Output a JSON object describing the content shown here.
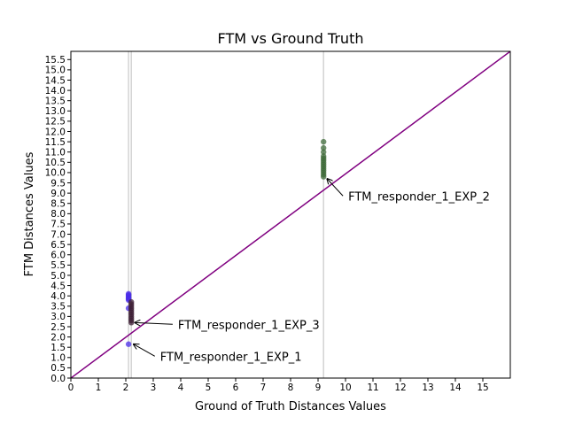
{
  "chart_data": {
    "type": "scatter",
    "title": "FTM vs Ground Truth",
    "xlabel": "Ground of Truth Distances Values",
    "ylabel": "FTM Distances Values",
    "xlim": [
      0,
      16
    ],
    "ylim": [
      0,
      15.9
    ],
    "xticks": [
      0,
      1,
      2,
      3,
      4,
      5,
      6,
      7,
      8,
      9,
      10,
      11,
      12,
      13,
      14,
      15
    ],
    "yticks": [
      0.0,
      0.5,
      1.0,
      1.5,
      2.0,
      2.5,
      3.0,
      3.5,
      4.0,
      4.5,
      5.0,
      5.5,
      6.0,
      6.5,
      7.0,
      7.5,
      8.0,
      8.5,
      9.0,
      9.5,
      10.0,
      10.5,
      11.0,
      11.5,
      12.0,
      12.5,
      13.0,
      13.5,
      14.0,
      14.5,
      15.0,
      15.5
    ],
    "reference_line": {
      "from": [
        0,
        0
      ],
      "to": [
        16,
        15.9
      ],
      "color": "#800080"
    },
    "vertical_lines": [
      {
        "x": 2.1,
        "color": "#d3d3d3"
      },
      {
        "x": 2.2,
        "color": "#d3d3d3"
      },
      {
        "x": 9.2,
        "color": "#d3d3d3"
      }
    ],
    "series": [
      {
        "color": "#4b2ee8",
        "points": [
          [
            2.1,
            1.65
          ],
          [
            2.1,
            3.4
          ],
          [
            2.1,
            3.8
          ],
          [
            2.1,
            3.85
          ],
          [
            2.1,
            3.9
          ],
          [
            2.1,
            3.95
          ],
          [
            2.1,
            4.0
          ],
          [
            2.1,
            4.05
          ],
          [
            2.1,
            4.1
          ]
        ]
      },
      {
        "color": "#3d1f35",
        "points": [
          [
            2.2,
            2.7
          ],
          [
            2.2,
            2.8
          ],
          [
            2.2,
            2.9
          ],
          [
            2.2,
            3.0
          ],
          [
            2.2,
            3.1
          ],
          [
            2.2,
            3.2
          ],
          [
            2.2,
            3.3
          ],
          [
            2.2,
            3.4
          ],
          [
            2.2,
            3.5
          ],
          [
            2.2,
            3.6
          ],
          [
            2.2,
            3.7
          ]
        ]
      },
      {
        "color": "#3f6b3a",
        "points": [
          [
            9.2,
            9.8
          ],
          [
            9.2,
            9.9
          ],
          [
            9.2,
            10.0
          ],
          [
            9.2,
            10.1
          ],
          [
            9.2,
            10.2
          ],
          [
            9.2,
            10.3
          ],
          [
            9.2,
            10.4
          ],
          [
            9.2,
            10.5
          ],
          [
            9.2,
            10.6
          ],
          [
            9.2,
            10.7
          ],
          [
            9.2,
            10.8
          ],
          [
            9.2,
            11.0
          ],
          [
            9.2,
            11.2
          ],
          [
            9.2,
            11.5
          ]
        ]
      }
    ],
    "annotations": [
      {
        "text": "FTM_responder_1_EXP_2",
        "point": [
          9.2,
          9.7
        ],
        "text_at": [
          10.1,
          8.65
        ]
      },
      {
        "text": "FTM_responder_1_EXP_3",
        "point": [
          2.2,
          2.7
        ],
        "text_at": [
          3.9,
          2.4
        ]
      },
      {
        "text": "FTM_responder_1_EXP_1",
        "point": [
          2.15,
          1.65
        ],
        "text_at": [
          3.25,
          0.85
        ]
      }
    ]
  }
}
